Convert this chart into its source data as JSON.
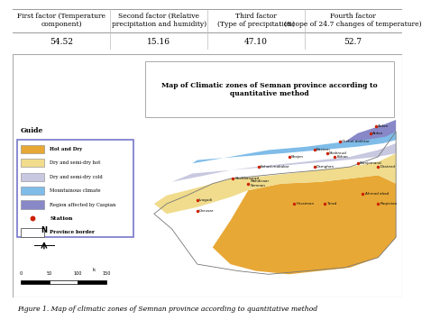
{
  "table_headers": [
    "First factor (Temperature\ncomponent)",
    "Second factor (Relative\nprecipitation and humidity)",
    "Third factor\n(Type of precipitation)",
    "Fourth factor\n(Scope of 24.7 changes of temperature)"
  ],
  "table_values": [
    "54.52",
    "15.16",
    "47.10",
    "52.7"
  ],
  "figure_caption": "Figure 1. Map of climatic zones of Semnan province according to quantitative method",
  "map_title": "Map of Climatic zones of Semnan province according to\nquantitative method",
  "guide_title": "Guide",
  "legend_items": [
    {
      "label": "Hot and Dry",
      "color": "#E8A835"
    },
    {
      "label": "Dry and semi-dry hot",
      "color": "#F0DC8C"
    },
    {
      "label": "Dry and semi-dry cold",
      "color": "#C8C8E0"
    },
    {
      "label": "Mountainous climate",
      "color": "#7FBCE8"
    },
    {
      "label": "Region affected by Caspian",
      "color": "#8888C8"
    }
  ],
  "station_label": "Station",
  "province_label": "Province border",
  "bg_color": "#FFFFFF",
  "caption_bg": "#D6EAF8",
  "header_fontsize": 5.5,
  "value_fontsize": 6.5,
  "caption_fontsize": 5.5
}
